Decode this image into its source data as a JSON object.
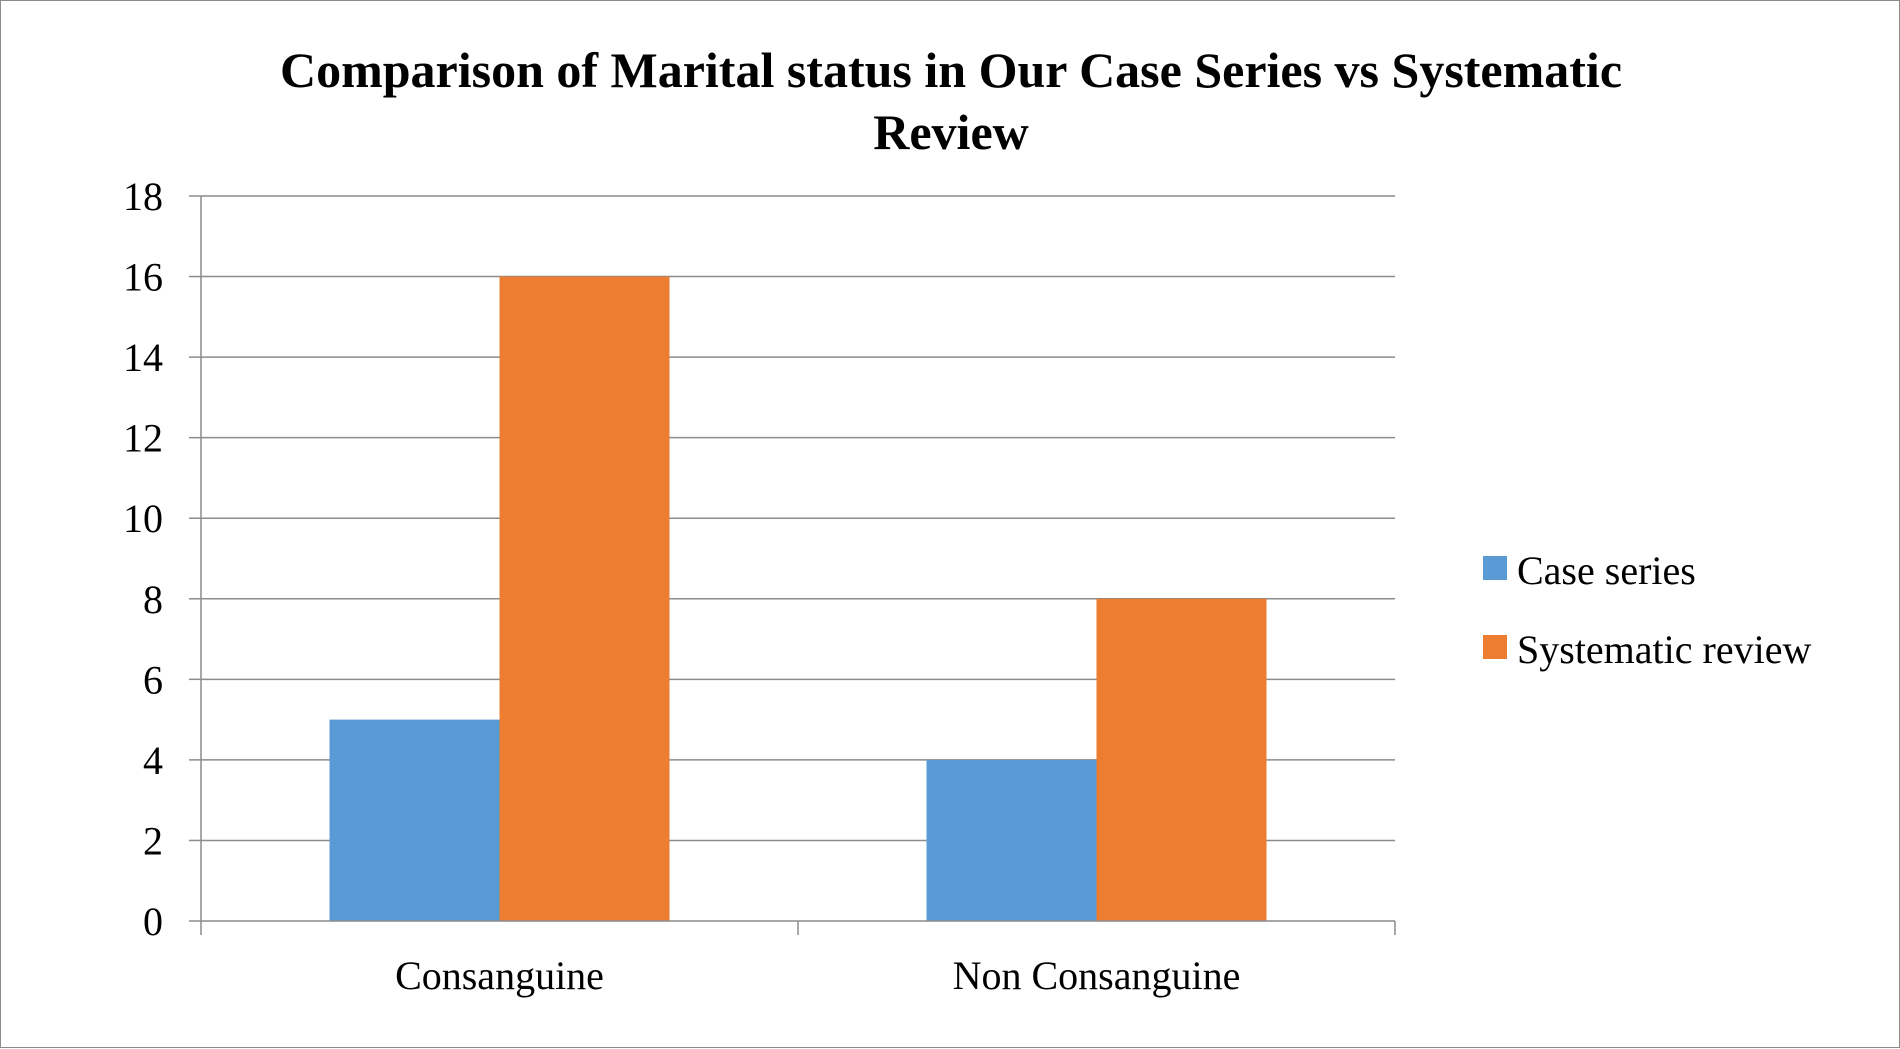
{
  "chart_data": {
    "type": "bar",
    "title_lines": [
      "Comparison of Marital status  in Our Case Series vs Systematic",
      "Review"
    ],
    "categories": [
      "Consanguine",
      "Non Consanguine"
    ],
    "series": [
      {
        "name": "Case series",
        "values": [
          5,
          4
        ],
        "color": "#5b9bd5"
      },
      {
        "name": "Systematic review",
        "values": [
          16,
          8
        ],
        "color": "#ed7d31"
      }
    ],
    "ylim": [
      0,
      18
    ],
    "ytick_step": 2,
    "yticks": [
      "0",
      "2",
      "4",
      "6",
      "8",
      "10",
      "12",
      "14",
      "16",
      "18"
    ],
    "grid": true,
    "legend_position": "right"
  }
}
